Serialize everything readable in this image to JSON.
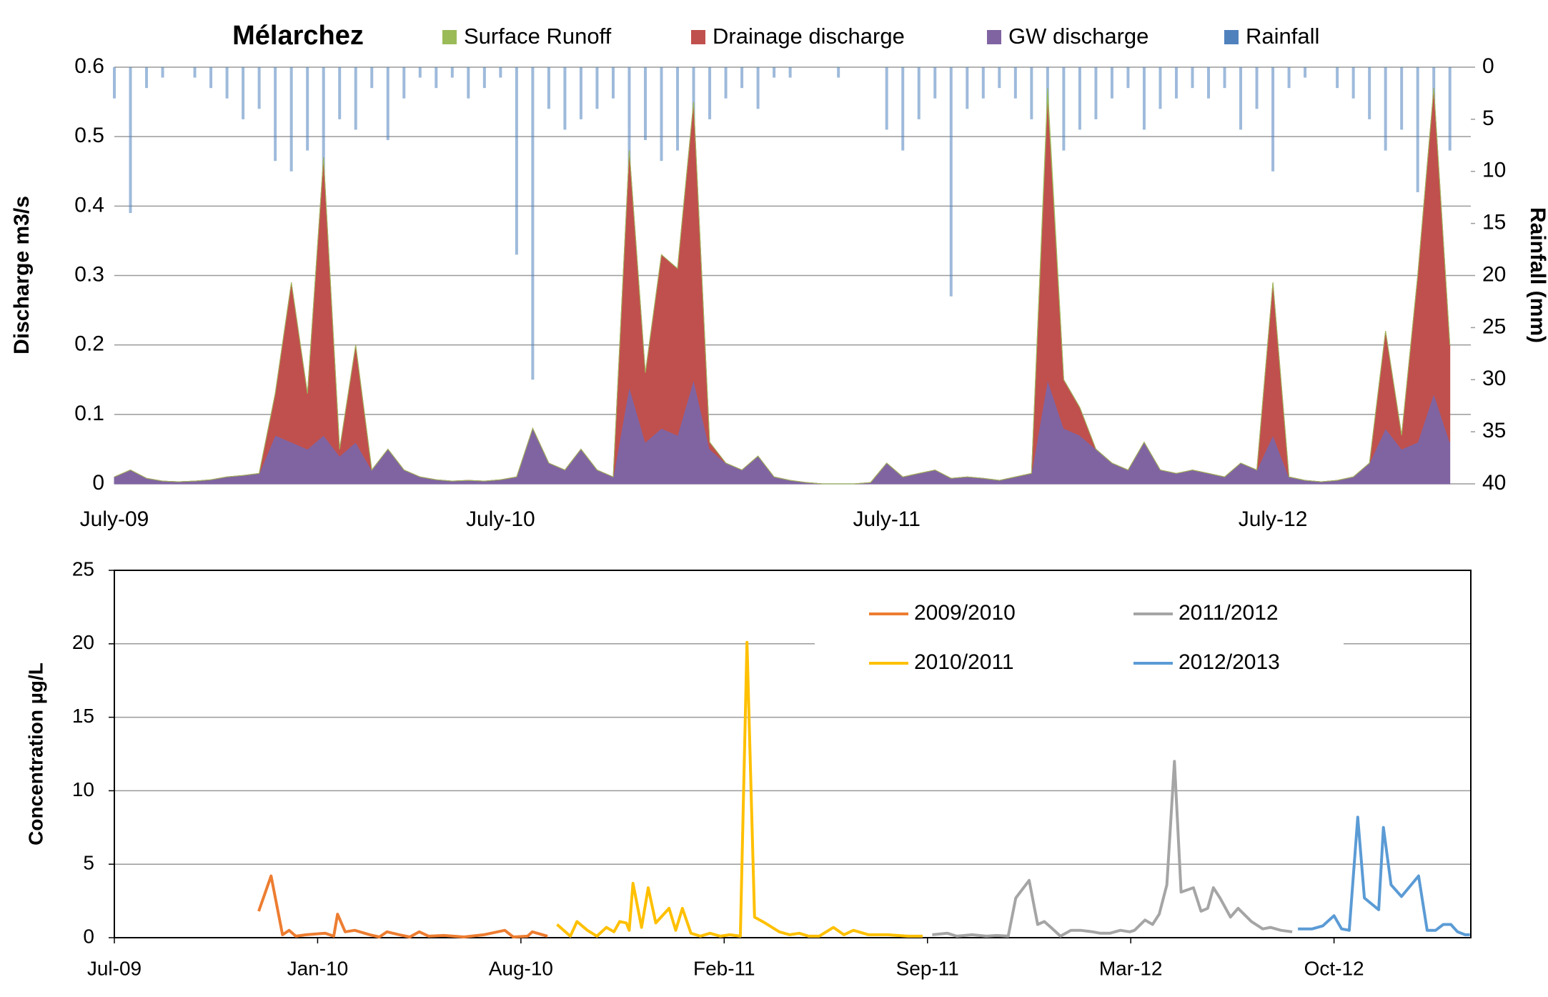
{
  "chart_data": [
    {
      "type": "area",
      "title": "Mélarchez",
      "stacked": true,
      "grid": true,
      "ylabel": "Discharge  m3/s",
      "y2label": "Rainfall (mm)",
      "categories": [
        "July-09",
        null,
        null,
        null,
        null,
        null,
        null,
        null,
        null,
        null,
        null,
        null,
        null,
        null,
        null,
        null,
        null,
        null,
        null,
        null,
        null,
        null,
        null,
        null,
        "July-10",
        null,
        null,
        null,
        null,
        null,
        null,
        null,
        null,
        null,
        null,
        null,
        null,
        null,
        null,
        null,
        null,
        null,
        null,
        null,
        null,
        null,
        null,
        null,
        "July-11",
        null,
        null,
        null,
        null,
        null,
        null,
        null,
        null,
        null,
        null,
        null,
        null,
        null,
        null,
        null,
        null,
        null,
        null,
        null,
        null,
        null,
        null,
        null,
        "July-12",
        null,
        null,
        null,
        null,
        null,
        null,
        null,
        null,
        null,
        null,
        null
      ],
      "ylim": [
        0,
        0.6
      ],
      "yticks": [
        0,
        0.1,
        0.2,
        0.3,
        0.4,
        0.5,
        0.6
      ],
      "y2lim": [
        40,
        0
      ],
      "y2ticks": [
        0,
        5,
        10,
        15,
        20,
        25,
        30,
        35,
        40
      ],
      "series": [
        {
          "name": "Surface Runoff",
          "color": "#9bbb59",
          "values": [
            0,
            0,
            0,
            0,
            0,
            0,
            0,
            0,
            0,
            0,
            0,
            0,
            0,
            0,
            0,
            0,
            0,
            0,
            0,
            0,
            0,
            0,
            0,
            0,
            0,
            0,
            0,
            0,
            0,
            0,
            0,
            0,
            0,
            0,
            0,
            0,
            0,
            0,
            0,
            0,
            0,
            0,
            0,
            0,
            0,
            0,
            0,
            0,
            0,
            0,
            0,
            0,
            0,
            0,
            0,
            0,
            0,
            0,
            0.01,
            0,
            0,
            0,
            0,
            0,
            0,
            0,
            0,
            0,
            0,
            0,
            0,
            0,
            0,
            0,
            0,
            0,
            0,
            0,
            0,
            0,
            0,
            0,
            0,
            0
          ]
        },
        {
          "name": "Drainage discharge",
          "color": "#c0504d",
          "values": [
            0,
            0,
            0,
            0,
            0,
            0,
            0,
            0,
            0,
            0,
            0.06,
            0.23,
            0.08,
            0.4,
            0.01,
            0.14,
            0,
            0,
            0,
            0,
            0,
            0,
            0,
            0,
            0,
            0,
            0,
            0,
            0,
            0,
            0,
            0,
            0.34,
            0.1,
            0.25,
            0.24,
            0.4,
            0.01,
            0,
            0,
            0,
            0,
            0,
            0,
            0,
            0,
            0,
            0,
            0,
            0,
            0,
            0,
            0,
            0,
            0,
            0,
            0,
            0,
            0.41,
            0.07,
            0.04,
            0,
            0,
            0,
            0,
            0,
            0,
            0,
            0,
            0,
            0,
            0,
            0.22,
            0,
            0,
            0,
            0,
            0,
            0,
            0.14,
            0.02,
            0.24,
            0.44,
            0.14
          ]
        },
        {
          "name": "GW discharge",
          "color": "#8064a2",
          "values": [
            0.01,
            0.02,
            0.008,
            0.004,
            0.003,
            0.004,
            0.006,
            0.01,
            0.012,
            0.015,
            0.07,
            0.06,
            0.05,
            0.07,
            0.04,
            0.06,
            0.02,
            0.05,
            0.02,
            0.01,
            0.006,
            0.004,
            0.005,
            0.004,
            0.006,
            0.01,
            0.08,
            0.03,
            0.02,
            0.05,
            0.02,
            0.01,
            0.14,
            0.06,
            0.08,
            0.07,
            0.15,
            0.05,
            0.03,
            0.02,
            0.04,
            0.01,
            0.005,
            0.002,
            0,
            0,
            0,
            0.002,
            0.03,
            0.01,
            0.015,
            0.02,
            0.008,
            0.01,
            0.008,
            0.005,
            0.01,
            0.015,
            0.15,
            0.08,
            0.07,
            0.05,
            0.03,
            0.02,
            0.06,
            0.02,
            0.015,
            0.02,
            0.015,
            0.01,
            0.03,
            0.02,
            0.07,
            0.01,
            0.005,
            0.003,
            0.005,
            0.01,
            0.03,
            0.08,
            0.05,
            0.06,
            0.13,
            0.06
          ]
        },
        {
          "name": "Rainfall",
          "color": "#4f81bd",
          "axis": "y2",
          "values": [
            3,
            14,
            2,
            1,
            0,
            1,
            2,
            3,
            5,
            4,
            9,
            10,
            8,
            12,
            5,
            6,
            2,
            7,
            3,
            1,
            2,
            1,
            3,
            2,
            1,
            18,
            30,
            4,
            6,
            5,
            4,
            3,
            10,
            7,
            9,
            8,
            12,
            5,
            3,
            2,
            4,
            1,
            1,
            0,
            0,
            1,
            0,
            0,
            6,
            8,
            5,
            3,
            22,
            4,
            3,
            2,
            3,
            5,
            10,
            8,
            6,
            5,
            3,
            2,
            6,
            4,
            3,
            2,
            3,
            2,
            6,
            4,
            10,
            2,
            1,
            0,
            2,
            3,
            5,
            8,
            6,
            12,
            14,
            8
          ]
        }
      ]
    },
    {
      "type": "line",
      "grid": true,
      "ylabel": "Concentration µg/L",
      "legend": "top-right",
      "xlim": [
        0,
        1428
      ],
      "xticks": [
        {
          "value": 0,
          "label": "Jul-09"
        },
        {
          "value": 214,
          "label": "Jan-10"
        },
        {
          "value": 428,
          "label": "Aug-10"
        },
        {
          "value": 642,
          "label": "Feb-11"
        },
        {
          "value": 856,
          "label": "Sep-11"
        },
        {
          "value": 1070,
          "label": "Mar-12"
        },
        {
          "value": 1284,
          "label": "Oct-12"
        }
      ],
      "ylim": [
        0,
        25
      ],
      "yticks": [
        0,
        5,
        10,
        15,
        20,
        25
      ],
      "series": [
        {
          "name": "2009/2010",
          "color": "#ed7d31",
          "x": [
            152,
            165,
            177,
            184,
            191,
            202,
            222,
            231,
            235,
            243,
            253,
            269,
            279,
            287,
            300,
            311,
            321,
            331,
            347,
            368,
            389,
            411,
            420,
            435,
            440,
            456
          ],
          "values": [
            1.8,
            4.2,
            0.2,
            0.5,
            0.1,
            0.2,
            0.3,
            0.1,
            1.6,
            0.4,
            0.5,
            0.2,
            0.05,
            0.4,
            0.2,
            0.05,
            0.4,
            0.1,
            0.15,
            0.05,
            0.2,
            0.5,
            0.05,
            0.1,
            0.4,
            0.1
          ]
        },
        {
          "name": "2010/2011",
          "color": "#ffc000",
          "x": [
            466,
            480,
            487,
            498,
            508,
            518,
            526,
            532,
            539,
            542,
            546,
            555,
            562,
            570,
            584,
            591,
            598,
            607,
            617,
            627,
            638,
            648,
            659,
            666,
            674,
            685,
            700,
            711,
            721,
            731,
            742,
            757,
            768,
            778,
            794,
            814,
            835,
            851
          ],
          "values": [
            0.9,
            0.1,
            1.1,
            0.5,
            0.1,
            0.7,
            0.4,
            1.1,
            1.0,
            0.5,
            3.7,
            0.7,
            3.4,
            1.0,
            2.0,
            0.5,
            2.0,
            0.3,
            0.1,
            0.3,
            0.1,
            0.2,
            0.1,
            20.1,
            1.4,
            1.0,
            0.4,
            0.2,
            0.3,
            0.1,
            0.1,
            0.7,
            0.2,
            0.5,
            0.2,
            0.2,
            0.1,
            0.1
          ]
        },
        {
          "name": "2011/2012",
          "color": "#a5a5a5",
          "x": [
            861,
            877,
            887,
            903,
            918,
            929,
            941,
            949,
            963,
            972,
            979,
            986,
            996,
            1007,
            1017,
            1030,
            1038,
            1048,
            1059,
            1069,
            1074,
            1085,
            1093,
            1100,
            1108,
            1116,
            1123,
            1136,
            1144,
            1151,
            1157,
            1164,
            1175,
            1183,
            1197,
            1209,
            1217,
            1228,
            1240
          ],
          "values": [
            0.2,
            0.3,
            0.1,
            0.2,
            0.1,
            0.15,
            0.1,
            2.7,
            3.9,
            0.9,
            1.1,
            0.7,
            0.1,
            0.5,
            0.5,
            0.4,
            0.3,
            0.3,
            0.5,
            0.4,
            0.5,
            1.2,
            0.9,
            1.6,
            3.6,
            12.0,
            3.1,
            3.4,
            1.8,
            2.0,
            3.4,
            2.7,
            1.4,
            2.0,
            1.1,
            0.6,
            0.7,
            0.5,
            0.4
          ]
        },
        {
          "name": "2012/2013",
          "color": "#5b9bd5",
          "x": [
            1246,
            1261,
            1272,
            1284,
            1292,
            1300,
            1309,
            1316,
            1331,
            1336,
            1344,
            1355,
            1373,
            1382,
            1391,
            1399,
            1407,
            1414,
            1422,
            1427
          ],
          "values": [
            0.6,
            0.6,
            0.8,
            1.5,
            0.6,
            0.5,
            8.2,
            2.7,
            1.9,
            7.5,
            3.6,
            2.8,
            4.2,
            0.5,
            0.5,
            0.9,
            0.9,
            0.4,
            0.2,
            0.2
          ]
        }
      ]
    }
  ]
}
